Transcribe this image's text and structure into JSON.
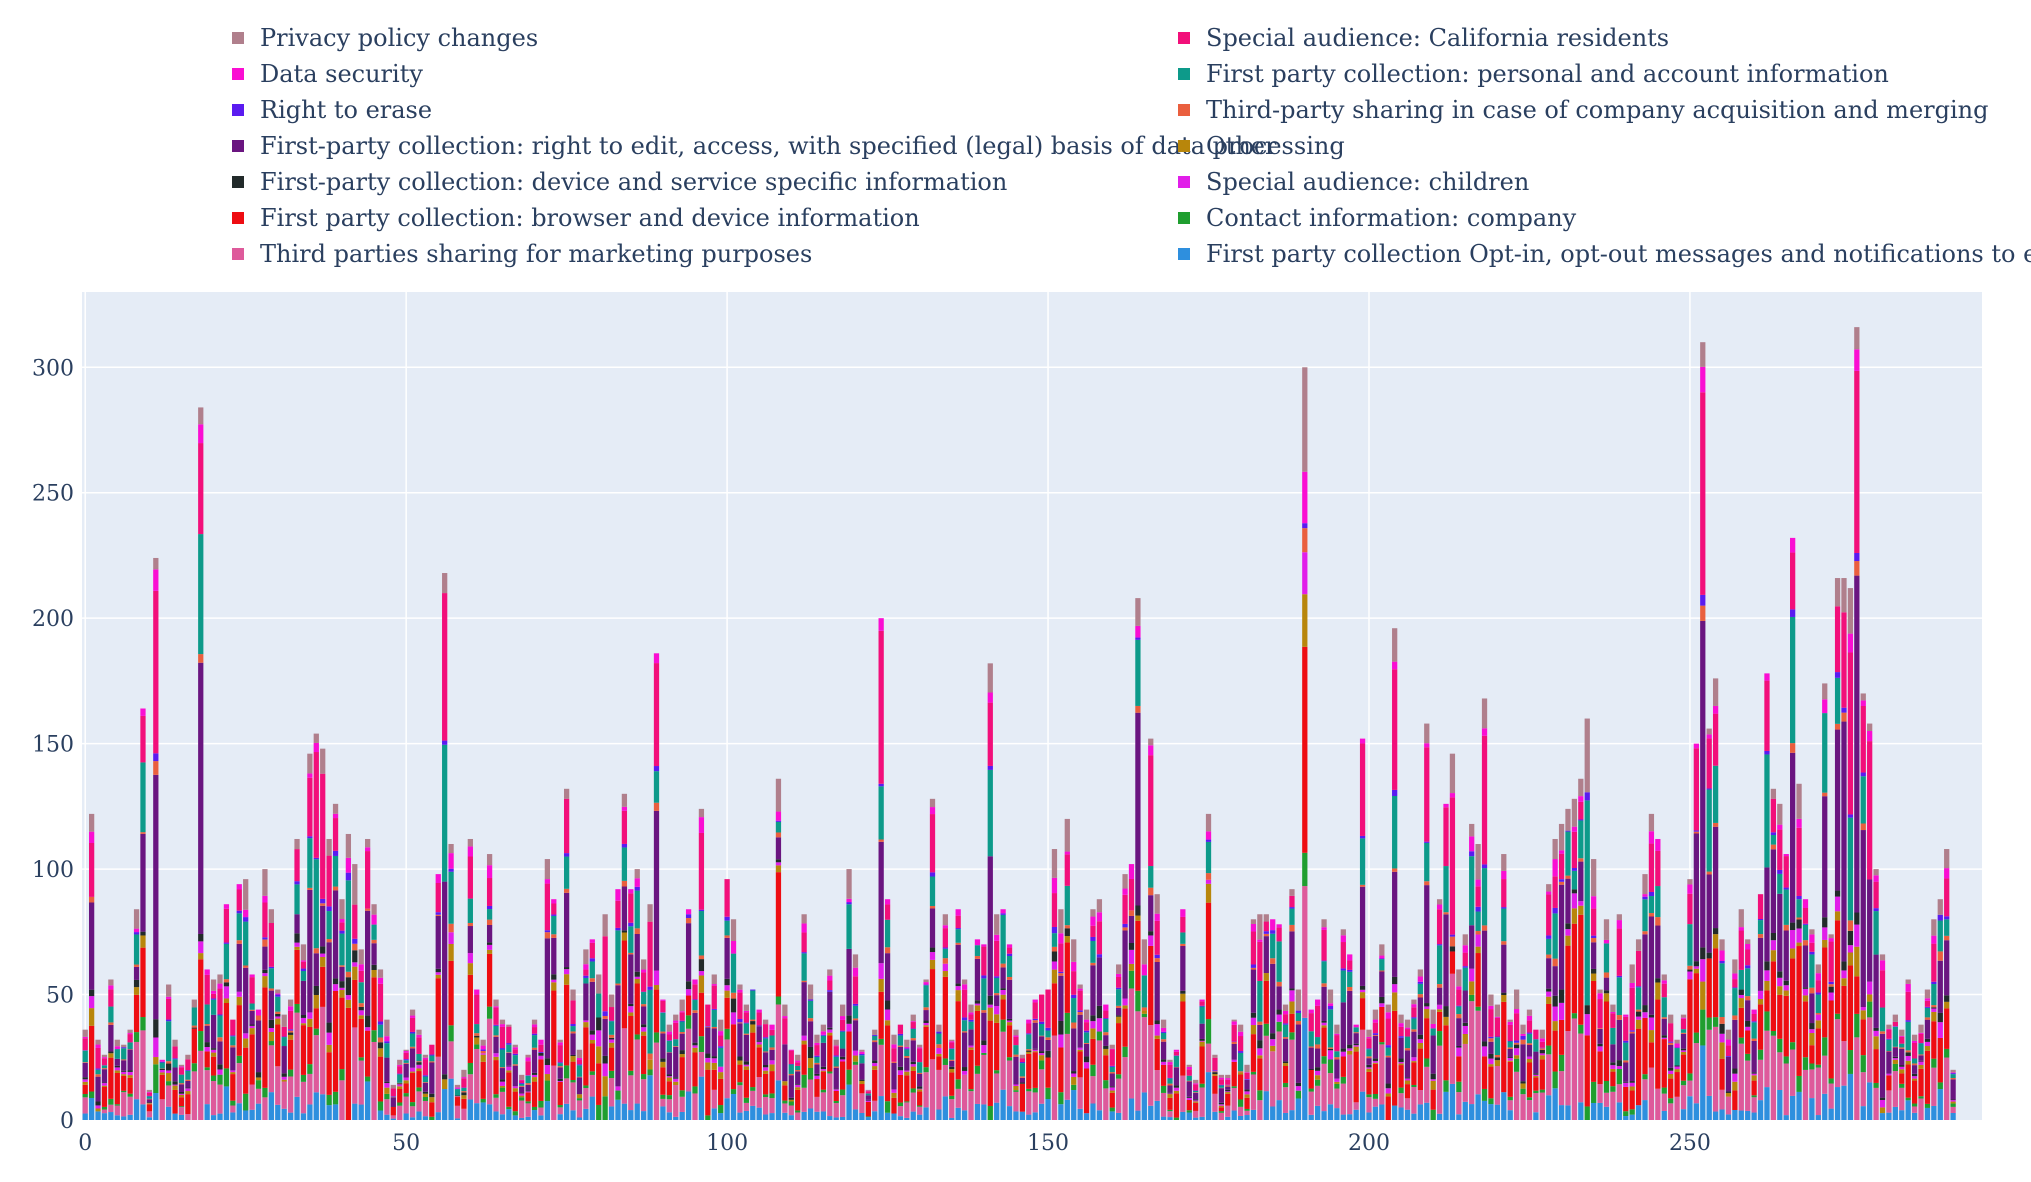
{
  "chart_data": {
    "type": "bar",
    "barmode": "stack",
    "n_bars": 296,
    "xlim": [
      -0.5,
      295.5
    ],
    "ylim": [
      0,
      330
    ],
    "x_ticks": [
      0,
      50,
      100,
      150,
      200,
      250
    ],
    "y_ticks": [
      0,
      50,
      100,
      150,
      200,
      250,
      300
    ],
    "x_tick_labels": [
      "0",
      "50",
      "100",
      "150",
      "200",
      "250"
    ],
    "y_tick_labels": [
      "0",
      "50",
      "100",
      "150",
      "200",
      "250",
      "300"
    ],
    "grid": true,
    "legend_position": "top",
    "plot_background": "#e5ecf6",
    "totals": [
      36,
      122,
      32,
      26,
      56,
      32,
      30,
      36,
      84,
      164,
      12,
      224,
      24,
      54,
      32,
      22,
      26,
      48,
      284,
      60,
      56,
      58,
      86,
      40,
      94,
      96,
      58,
      44,
      100,
      84,
      52,
      42,
      48,
      112,
      70,
      146,
      154,
      148,
      112,
      126,
      88,
      114,
      102,
      68,
      112,
      86,
      60,
      40,
      14,
      24,
      28,
      44,
      36,
      26,
      30,
      98,
      218,
      110,
      14,
      20,
      112,
      52,
      32,
      106,
      48,
      40,
      38,
      30,
      18,
      26,
      40,
      32,
      104,
      88,
      32,
      132,
      52,
      28,
      68,
      72,
      58,
      82,
      50,
      92,
      130,
      92,
      100,
      64,
      86,
      186,
      48,
      38,
      42,
      48,
      84,
      56,
      124,
      46,
      58,
      40,
      96,
      80,
      54,
      46,
      52,
      44,
      40,
      38,
      136,
      46,
      28,
      26,
      82,
      54,
      34,
      38,
      60,
      32,
      46,
      100,
      66,
      28,
      12,
      36,
      200,
      88,
      34,
      38,
      32,
      42,
      30,
      56,
      128,
      38,
      82,
      32,
      84,
      56,
      46,
      72,
      70,
      182,
      82,
      84,
      70,
      36,
      26,
      40,
      48,
      50,
      52,
      108,
      84,
      120,
      72,
      54,
      44,
      84,
      88,
      46,
      30,
      62,
      98,
      102,
      208,
      72,
      152,
      90,
      40,
      24,
      28,
      84,
      22,
      16,
      48,
      122,
      26,
      18,
      18,
      40,
      38,
      22,
      80,
      82,
      82,
      80,
      78,
      46,
      92,
      52,
      300,
      44,
      48,
      80,
      52,
      38,
      76,
      66,
      38,
      152,
      36,
      44,
      70,
      46,
      196,
      42,
      40,
      48,
      60,
      158,
      44,
      88,
      126,
      146,
      60,
      74,
      118,
      110,
      168,
      50,
      46,
      106,
      40,
      52,
      38,
      44,
      36,
      36,
      94,
      112,
      118,
      124,
      128,
      136,
      160,
      104,
      52,
      80,
      46,
      82,
      42,
      62,
      72,
      98,
      122,
      112,
      58,
      42,
      32,
      42,
      96,
      150,
      310,
      156,
      176,
      72,
      36,
      64,
      84,
      72,
      44,
      90,
      178,
      132,
      126,
      106,
      232,
      134,
      88,
      76,
      62,
      174,
      74,
      216,
      216,
      212,
      316,
      170,
      158,
      100,
      66,
      38,
      42,
      36,
      56,
      34,
      38,
      52,
      80,
      88,
      108,
      20
    ]
  },
  "legend": [
    {
      "name": "Privacy policy changes",
      "color": "#b07f8c"
    },
    {
      "name": "Data security",
      "color": "#fa0ed2"
    },
    {
      "name": "Right to erase",
      "color": "#5a1bf0"
    },
    {
      "name": "First-party collection: right to edit, access, with specified (legal) basis of data processing",
      "color": "#6a1580"
    },
    {
      "name": "First-party collection: device and service specific information",
      "color": "#222a2a"
    },
    {
      "name": "First party collection: browser and device information",
      "color": "#ee0d12"
    },
    {
      "name": "Third parties sharing for marketing purposes",
      "color": "#de5a9b"
    },
    {
      "name": "Special audience: California residents",
      "color": "#f20f7a"
    },
    {
      "name": "First party collection: personal and account information",
      "color": "#0d9a8a"
    },
    {
      "name": "Third-party sharing in case of company acquisition and merging",
      "color": "#ea5f3e"
    },
    {
      "name": "Other",
      "color": "#b8860b"
    },
    {
      "name": "Special audience: children",
      "color": "#e11ee9"
    },
    {
      "name": "Contact information: company",
      "color": "#1f9e2f"
    },
    {
      "name": "First party collection Opt-in, opt-out messages and notifications to end user",
      "color": "#2e8fde"
    }
  ]
}
